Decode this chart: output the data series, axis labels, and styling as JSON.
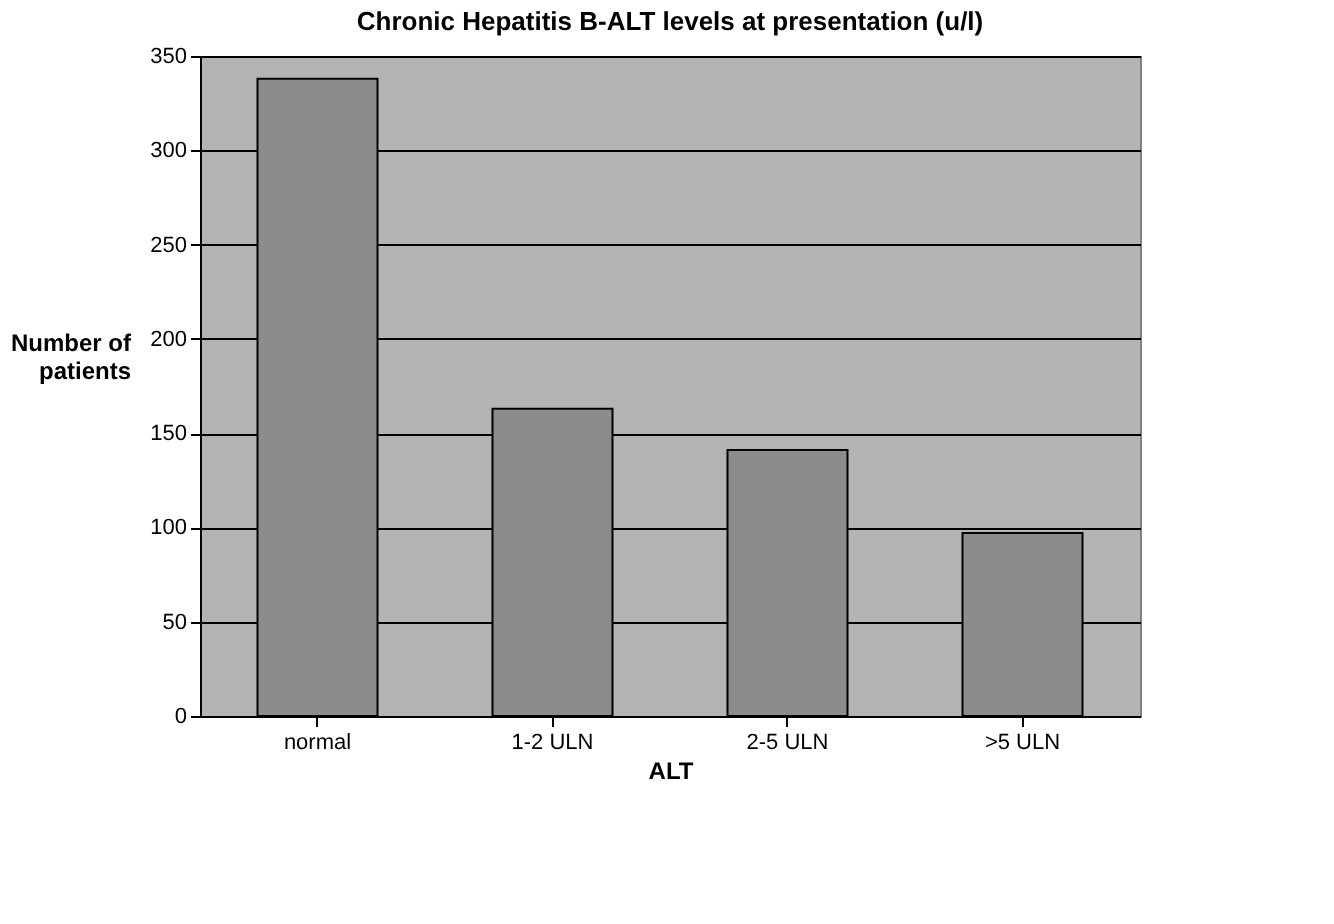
{
  "chart_data": {
    "type": "bar",
    "title": "Chronic Hepatitis B-ALT levels at presentation (u/l)",
    "xlabel": "ALT",
    "ylabel": "Number of patients",
    "categories": [
      "normal",
      "1-2 ULN",
      "2-5 ULN",
      ">5 ULN"
    ],
    "values": [
      338,
      163,
      141,
      97
    ],
    "color": "#8c8c8c",
    "ylim": [
      0,
      350
    ],
    "yticks": [
      0,
      50,
      100,
      150,
      200,
      250,
      300,
      350
    ],
    "grid": "y"
  }
}
